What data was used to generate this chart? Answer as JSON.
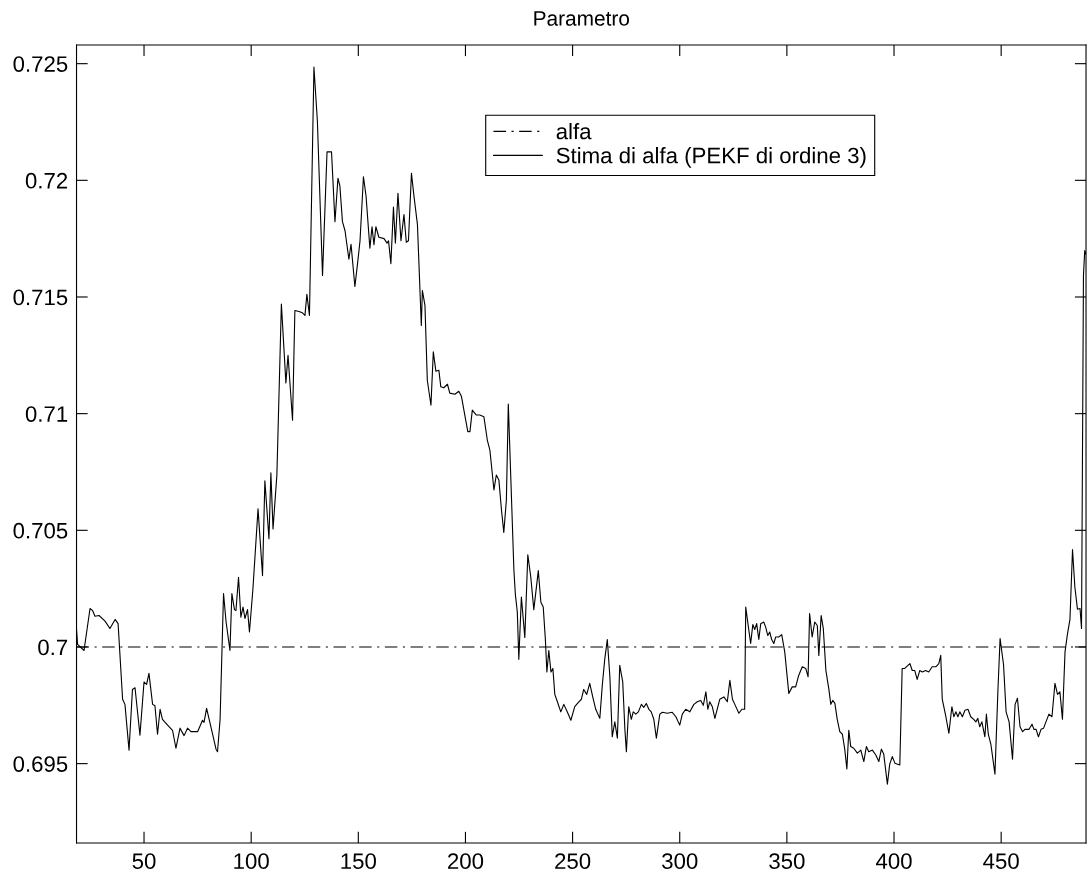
{
  "chart_data": {
    "type": "line",
    "title": "Parametro",
    "xlim": [
      18.5,
      489.6
    ],
    "ylim": [
      0.6916,
      0.7258
    ],
    "xticks": [
      50,
      100,
      150,
      200,
      250,
      300,
      350,
      400,
      450
    ],
    "yticks": [
      0.695,
      0.7,
      0.705,
      0.71,
      0.715,
      0.72,
      0.725
    ],
    "legend": "top",
    "series": [
      {
        "name": "alfa",
        "color": "#000000",
        "line_style": "dashdot",
        "x": [
          18.5,
          489.6
        ],
        "values": [
          0.7,
          0.7
        ]
      },
      {
        "name": "Stima di alfa (PEKF di ordine 3)",
        "color": "#000000",
        "line_style": "solid",
        "x": [
          18.5,
          19.0,
          22.0,
          24.8,
          26.0,
          27.1,
          29.0,
          31.8,
          34.1,
          36.5,
          37.9,
          40.0,
          41.1,
          43.0,
          44.6,
          45.8,
          48.1,
          50.0,
          51.2,
          52.3,
          54.0,
          55.1,
          56.3,
          57.5,
          58.6,
          61.0,
          63.3,
          64.9,
          66.8,
          68.7,
          70.3,
          71.9,
          75.0,
          77.3,
          78.0,
          79.2,
          82.0,
          83.6,
          84.3,
          85.5,
          87.1,
          88.3,
          90.1,
          91.0,
          92.2,
          92.9,
          94.1,
          95.2,
          96.2,
          97.1,
          98.3,
          99.2,
          100.8,
          103.2,
          105.3,
          106.4,
          108.3,
          109.2,
          110.2,
          112.0,
          114.1,
          116.2,
          117.2,
          119.3,
          120.4,
          122.3,
          123.9,
          125.1,
          126.0,
          127.2,
          129.3,
          130.9,
          133.3,
          135.4,
          137.5,
          139.1,
          140.5,
          141.4,
          142.6,
          143.8,
          145.6,
          146.6,
          148.4,
          149.8,
          150.8,
          152.4,
          153.6,
          155.4,
          156.4,
          157.3,
          158.2,
          159.6,
          162.0,
          163.4,
          164.1,
          165.2,
          166.4,
          167.3,
          168.5,
          169.9,
          171.3,
          172.4,
          173.4,
          174.8,
          176.0,
          177.6,
          179.4,
          179.9,
          181.1,
          182.2,
          183.9,
          185.0,
          186.2,
          187.6,
          188.5,
          189.9,
          191.6,
          192.7,
          195.1,
          196.9,
          198.1,
          199.7,
          201.1,
          202.1,
          203.2,
          205.1,
          206.7,
          208.6,
          210.2,
          211.4,
          213.3,
          214.4,
          215.6,
          216.8,
          217.9,
          219.1,
          220.0,
          221.2,
          222.6,
          223.3,
          224.2,
          224.9,
          226.1,
          227.7,
          229.1,
          230.5,
          231.9,
          234.0,
          235.2,
          236.3,
          237.3,
          238.0,
          238.9,
          239.9,
          240.8,
          241.7,
          242.9,
          244.5,
          245.9,
          247.5,
          249.2,
          251.0,
          252.9,
          254.1,
          255.2,
          256.6,
          258.0,
          259.4,
          260.8,
          262.7,
          263.9,
          265.0,
          266.2,
          267.4,
          268.5,
          269.7,
          270.9,
          272.0,
          273.4,
          274.4,
          275.1,
          276.2,
          277.4,
          278.3,
          279.5,
          280.7,
          282.1,
          283.2,
          284.4,
          285.6,
          286.7,
          287.9,
          289.1,
          290.7,
          291.9,
          294.2,
          296.5,
          298.2,
          300.0,
          301.2,
          302.8,
          304.7,
          306.6,
          308.2,
          309.8,
          311.0,
          312.2,
          313.1,
          314.0,
          315.2,
          316.4,
          318.7,
          320.6,
          322.2,
          323.4,
          324.6,
          325.7,
          327.6,
          329.0,
          330.3,
          330.8,
          332.2,
          333.1,
          334.1,
          335.0,
          335.9,
          336.9,
          337.8,
          339.2,
          340.1,
          341.1,
          342.0,
          342.9,
          343.9,
          344.8,
          346.2,
          347.6,
          349.0,
          350.9,
          352.5,
          354.1,
          355.5,
          357.2,
          358.8,
          359.9,
          360.6,
          361.8,
          363.0,
          364.2,
          364.9,
          366.0,
          367.0,
          368.2,
          369.6,
          370.5,
          371.4,
          372.4,
          373.5,
          374.7,
          375.9,
          377.0,
          378.0,
          378.9,
          379.8,
          381.2,
          382.9,
          384.5,
          385.9,
          387.1,
          388.2,
          389.9,
          391.5,
          392.9,
          394.1,
          395.2,
          396.9,
          398.0,
          399.2,
          400.4,
          402.7,
          403.8,
          405.0,
          407.4,
          408.5,
          409.7,
          410.8,
          412.0,
          413.2,
          414.8,
          416.2,
          417.8,
          419.5,
          420.9,
          421.8,
          422.5,
          424.2,
          425.6,
          427.0,
          427.9,
          428.9,
          429.8,
          430.7,
          431.9,
          433.1,
          434.5,
          435.8,
          437.2,
          438.2,
          439.1,
          440.0,
          441.0,
          442.4,
          443.1,
          444.0,
          445.2,
          447.1,
          448.5,
          449.5,
          451.1,
          452.3,
          453.7,
          455.3,
          456.5,
          457.6,
          458.8,
          460.0,
          461.1,
          463.0,
          464.4,
          465.3,
          466.3,
          467.4,
          468.6,
          469.8,
          470.9,
          472.3,
          473.7,
          475.1,
          476.3,
          477.4,
          478.6,
          479.8,
          480.9,
          482.1,
          483.3,
          484.4,
          485.6,
          486.8,
          487.5,
          488.4,
          489.0,
          489.6
        ],
        "values": [
          0.70075,
          0.70011,
          0.69985,
          0.70165,
          0.70156,
          0.70132,
          0.70135,
          0.70111,
          0.70079,
          0.70118,
          0.701,
          0.69776,
          0.69754,
          0.69558,
          0.69818,
          0.69825,
          0.69622,
          0.6985,
          0.6984,
          0.69887,
          0.69754,
          0.69748,
          0.69626,
          0.69733,
          0.6969,
          0.69665,
          0.69643,
          0.69566,
          0.69652,
          0.6962,
          0.69652,
          0.69637,
          0.69637,
          0.69686,
          0.69677,
          0.69737,
          0.69626,
          0.69562,
          0.69551,
          0.6969,
          0.70229,
          0.70107,
          0.69985,
          0.70229,
          0.7016,
          0.70156,
          0.70299,
          0.70128,
          0.70171,
          0.70122,
          0.7016,
          0.70064,
          0.70246,
          0.70592,
          0.70306,
          0.70712,
          0.70464,
          0.70746,
          0.70506,
          0.70737,
          0.7147,
          0.71132,
          0.7125,
          0.70972,
          0.71442,
          0.71438,
          0.71432,
          0.71421,
          0.71511,
          0.71421,
          0.72485,
          0.72254,
          0.71592,
          0.72122,
          0.72122,
          0.71823,
          0.72009,
          0.71976,
          0.71823,
          0.71784,
          0.71662,
          0.71726,
          0.71545,
          0.71656,
          0.71741,
          0.72015,
          0.71934,
          0.71709,
          0.71801,
          0.71724,
          0.71801,
          0.71756,
          0.7175,
          0.71731,
          0.71741,
          0.71643,
          0.71885,
          0.71731,
          0.71944,
          0.71741,
          0.71853,
          0.71735,
          0.71741,
          0.7203,
          0.7193,
          0.7181,
          0.71378,
          0.71528,
          0.71464,
          0.71143,
          0.71036,
          0.71265,
          0.71182,
          0.71186,
          0.71115,
          0.71111,
          0.71126,
          0.71088,
          0.71083,
          0.71096,
          0.71075,
          0.70994,
          0.70923,
          0.70923,
          0.71015,
          0.70994,
          0.70994,
          0.70987,
          0.70887,
          0.70844,
          0.70673,
          0.70737,
          0.70716,
          0.70588,
          0.70491,
          0.7063,
          0.71041,
          0.70716,
          0.70331,
          0.70224,
          0.7015,
          0.69947,
          0.70214,
          0.70041,
          0.70395,
          0.70299,
          0.7016,
          0.70327,
          0.70192,
          0.70171,
          0.70032,
          0.69893,
          0.69985,
          0.69893,
          0.69908,
          0.69797,
          0.69765,
          0.69722,
          0.69754,
          0.69722,
          0.69686,
          0.69744,
          0.69765,
          0.69776,
          0.69818,
          0.69797,
          0.69844,
          0.69786,
          0.69733,
          0.69694,
          0.6984,
          0.69947,
          0.70032,
          0.69872,
          0.69615,
          0.69679,
          0.69609,
          0.69921,
          0.6985,
          0.69647,
          0.69551,
          0.69744,
          0.6969,
          0.69722,
          0.69712,
          0.69722,
          0.69754,
          0.69741,
          0.69758,
          0.69733,
          0.69722,
          0.6969,
          0.69609,
          0.69712,
          0.6972,
          0.69716,
          0.6972,
          0.69701,
          0.69665,
          0.69712,
          0.69733,
          0.69722,
          0.69754,
          0.69765,
          0.69771,
          0.6975,
          0.69808,
          0.69733,
          0.69765,
          0.69744,
          0.69694,
          0.69776,
          0.69786,
          0.69765,
          0.69857,
          0.69776,
          0.69754,
          0.69716,
          0.69733,
          0.69733,
          0.70171,
          0.70075,
          0.70015,
          0.70096,
          0.70075,
          0.701,
          0.70032,
          0.701,
          0.70107,
          0.70085,
          0.70049,
          0.70064,
          0.70032,
          0.70015,
          0.70043,
          0.70043,
          0.70053,
          0.69979,
          0.69801,
          0.69829,
          0.69829,
          0.69878,
          0.69915,
          0.69908,
          0.69872,
          0.70143,
          0.70043,
          0.70107,
          0.70092,
          0.69964,
          0.70135,
          0.70079,
          0.699,
          0.69818,
          0.69754,
          0.69771,
          0.69758,
          0.6969,
          0.69637,
          0.69626,
          0.69562,
          0.69477,
          0.69643,
          0.69573,
          0.69566,
          0.69545,
          0.69558,
          0.69509,
          0.69573,
          0.69551,
          0.69558,
          0.69537,
          0.69509,
          0.69562,
          0.69541,
          0.69412,
          0.69498,
          0.6953,
          0.69502,
          0.69494,
          0.69908,
          0.69908,
          0.69929,
          0.69899,
          0.69899,
          0.69861,
          0.69899,
          0.69893,
          0.69899,
          0.69893,
          0.69915,
          0.69915,
          0.69929,
          0.69964,
          0.69776,
          0.69701,
          0.6963,
          0.69744,
          0.69701,
          0.69722,
          0.69701,
          0.69722,
          0.69701,
          0.69729,
          0.69733,
          0.69701,
          0.6969,
          0.69679,
          0.69694,
          0.69658,
          0.69679,
          0.69615,
          0.69712,
          0.69626,
          0.69583,
          0.69455,
          0.69818,
          0.70036,
          0.69925,
          0.69722,
          0.69679,
          0.69519,
          0.69754,
          0.6978,
          0.69658,
          0.69637,
          0.69647,
          0.69647,
          0.69669,
          0.69647,
          0.69647,
          0.69615,
          0.69647,
          0.69652,
          0.69679,
          0.69712,
          0.69701,
          0.69844,
          0.69797,
          0.69808,
          0.6969,
          0.69979,
          0.70053,
          0.70118,
          0.70417,
          0.70256,
          0.70162,
          0.70165,
          0.70079,
          0.71592,
          0.71699,
          0.71682
        ]
      }
    ]
  }
}
